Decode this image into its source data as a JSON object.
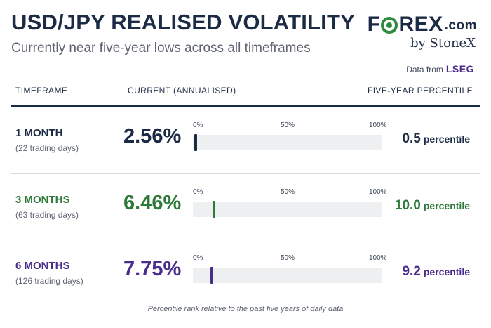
{
  "header": {
    "title": "USD/JPY REALISED VOLATILITY",
    "subtitle": "Currently near five-year lows across all timeframes",
    "source_prefix": "Data from",
    "source_name": "LSEG"
  },
  "logo": {
    "forex_before": "F",
    "forex_after": "REX",
    "forex_suffix": ".com",
    "by_line": "by StoneX"
  },
  "columns": {
    "timeframe": "TIMEFRAME",
    "current": "CURRENT (ANNUALISED)",
    "percentile": "FIVE-YEAR PERCENTILE"
  },
  "scale_ticks": [
    "0%",
    "50%",
    "100%"
  ],
  "percentile_word": "percentile",
  "footnote": "Percentile rank relative to the past five years of daily data",
  "colors": {
    "navy": "#1c2b45",
    "green": "#2e7a3a",
    "purple": "#4a2c8a",
    "track": "#eeeff1"
  },
  "chart_data": {
    "type": "table",
    "title": "USD/JPY REALISED VOLATILITY",
    "subtitle": "Currently near five-year lows across all timeframes",
    "scale": {
      "min": 0,
      "max": 100,
      "unit": "%"
    },
    "rows": [
      {
        "timeframe": "1 MONTH",
        "days": "(22 trading days)",
        "current": "2.56%",
        "percentile_text": "0.5",
        "percentile": 0.5,
        "color": "#1c2b45"
      },
      {
        "timeframe": "3 MONTHS",
        "days": "(63 trading days)",
        "current": "6.46%",
        "percentile_text": "10.0",
        "percentile": 10.0,
        "color": "#2e7a3a"
      },
      {
        "timeframe": "6 MONTHS",
        "days": "(126 trading days)",
        "current": "7.75%",
        "percentile_text": "9.2",
        "percentile": 9.2,
        "color": "#4a2c8a"
      }
    ]
  }
}
